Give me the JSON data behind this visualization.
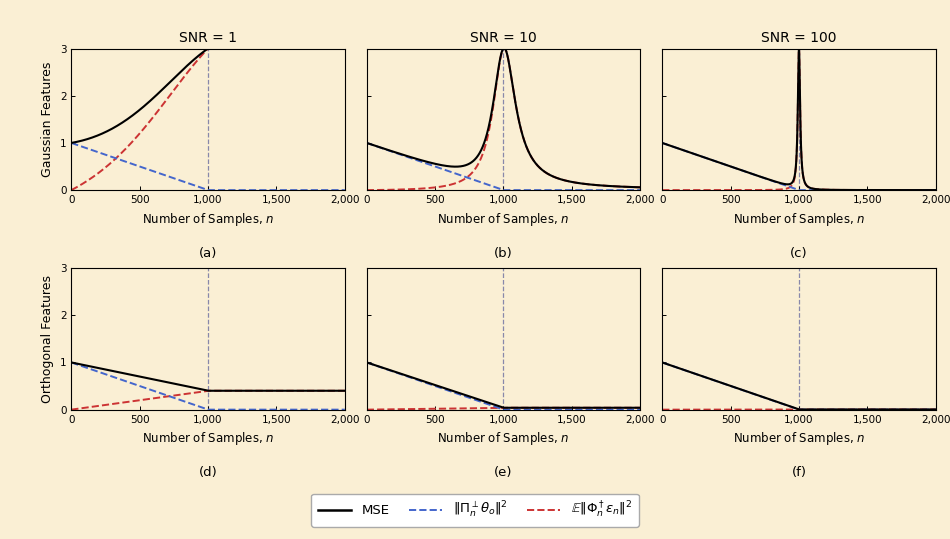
{
  "background_color": "#faefd4",
  "titles": [
    "SNR = 1",
    "SNR = 10",
    "SNR = 100"
  ],
  "ylabels": [
    "Gaussian Features",
    "Orthogonal Features"
  ],
  "xlabel": "Number of Samples, $n$",
  "subplot_labels": [
    "(a)",
    "(b)",
    "(c)",
    "(d)",
    "(e)",
    "(f)"
  ],
  "xlim": [
    0,
    2000
  ],
  "ylim": [
    0,
    3
  ],
  "vline_x": 1000,
  "snr_values": [
    1,
    10,
    100
  ],
  "n_points": 2000,
  "legend_labels": [
    "MSE",
    "$\\|\\Pi_n^\\perp \\theta_o\\|^2$",
    "$\\mathbb{E}\\|\\Phi_n^\\dagger \\varepsilon_n\\|^2$"
  ],
  "line_colors": [
    "black",
    "#4466cc",
    "#cc3333"
  ],
  "xticks": [
    0,
    500,
    1000,
    1500,
    2000
  ],
  "yticks": [
    0,
    1,
    2,
    3
  ],
  "tick_labels_x": [
    "0",
    "500",
    "1,000",
    "1,500",
    "2,000"
  ],
  "tick_labels_y": [
    "0",
    "1",
    "2",
    "3"
  ]
}
